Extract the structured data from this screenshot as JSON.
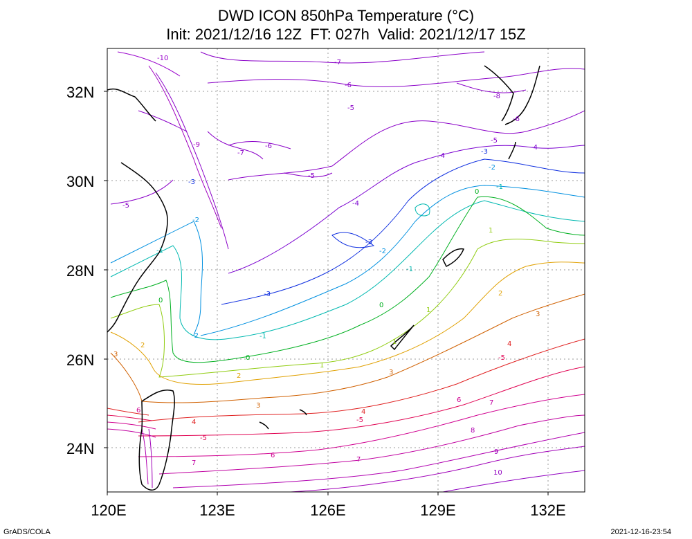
{
  "title": {
    "line1": "DWD ICON 850hPa Temperature (°C)",
    "line2": "Init: 2021/12/16 12Z  FT: 027h  Valid: 2021/12/17 15Z"
  },
  "axes": {
    "lat_labels": [
      "32N",
      "30N",
      "28N",
      "26N",
      "24N"
    ],
    "lon_labels": [
      "120E",
      "123E",
      "126E",
      "129E",
      "132E"
    ]
  },
  "footer": {
    "left": "GrADS/COLA",
    "right": "2021-12-16-23:54"
  },
  "map": {
    "projection": "latlon",
    "lon_range": [
      120,
      133
    ],
    "lat_range": [
      23,
      33
    ],
    "grid": "dotted",
    "contour_colors": {
      "-10": "#9900cc",
      "-9": "#a000c0",
      "-8": "#8a00c8",
      "-7": "#8a00c8",
      "-6": "#8a00c8",
      "-5": "#8a00c8",
      "-4": "#7a00d0",
      "-3": "#1030e0",
      "-2": "#0090e0",
      "-1": "#00b8b0",
      "0": "#00b020",
      "1": "#90cc10",
      "2": "#e0a000",
      "3": "#d06000",
      "4": "#e02020",
      "5": "#e00050",
      "6": "#d00090",
      "7": "#c000a0",
      "8": "#b000b0",
      "9": "#a000b8",
      "10": "#9000c0"
    },
    "contour_labels": [
      "-10",
      "-9",
      "-8",
      "-7",
      "-7",
      "-6",
      "-6",
      "-6",
      "-5",
      "-5",
      "-5",
      "-5",
      "-4",
      "-4",
      "-4",
      "-3",
      "-3",
      "-3",
      "-3",
      "-2",
      "-2",
      "-2",
      "-2",
      "-1",
      "-1",
      "-1",
      "-1",
      "0",
      "0",
      "0",
      "0",
      "1",
      "1",
      "1",
      "1",
      "2",
      "2",
      "2",
      "3",
      "3",
      "3",
      "3",
      "4",
      "4",
      "4",
      "5",
      "5",
      "5",
      "6",
      "6",
      "6",
      "7",
      "7",
      "7",
      "8",
      "9",
      "10"
    ]
  }
}
